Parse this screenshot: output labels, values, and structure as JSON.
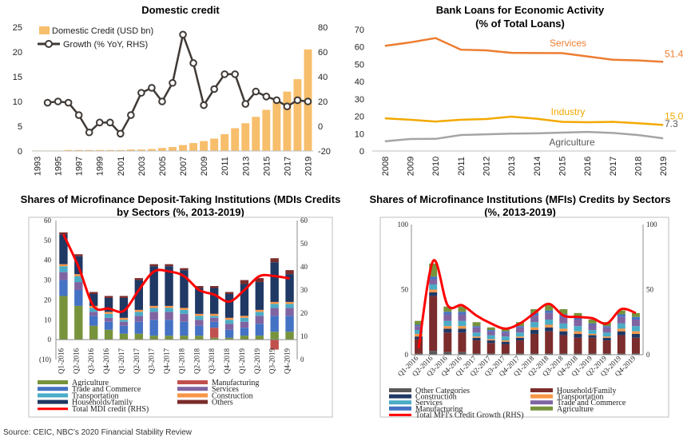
{
  "source_note": "Source: CEIC, NBC’s 2020 Financial Stability Review",
  "chart_data": [
    {
      "type": "bar",
      "title": "Domestic credit",
      "x": [
        "1993",
        "1994",
        "1995",
        "1996",
        "1997",
        "1998",
        "1999",
        "2000",
        "2001",
        "2002",
        "2003",
        "2004",
        "2005",
        "2006",
        "2007",
        "2008",
        "2009",
        "2010",
        "2011",
        "2012",
        "2013",
        "2014",
        "2015",
        "2016",
        "2017",
        "2018",
        "2019"
      ],
      "x_tick_labels": [
        "1993",
        "1995",
        "1997",
        "1999",
        "2001",
        "2003",
        "2005",
        "2007",
        "2009",
        "2011",
        "2013",
        "2015",
        "2017",
        "2019"
      ],
      "y_ticks_left": [
        "0",
        "5",
        "10",
        "15",
        "20",
        "25"
      ],
      "y_ticks_right": [
        "-20",
        "0",
        "20",
        "40",
        "60",
        "80"
      ],
      "ylim_left": [
        0,
        25
      ],
      "ylim_right": [
        -20,
        80
      ],
      "legend_position": "top-left",
      "grid": false,
      "series": [
        {
          "name": "Domestic Credit (USD bn)",
          "type": "bar",
          "axis": "left",
          "color": "#f7be6b",
          "values": [
            0.1,
            0.1,
            0.1,
            0.2,
            0.2,
            0.2,
            0.2,
            0.2,
            0.2,
            0.3,
            0.3,
            0.4,
            0.6,
            0.8,
            1.2,
            1.6,
            2.0,
            2.5,
            3.4,
            4.6,
            5.6,
            6.9,
            8.3,
            10.0,
            12.0,
            14.5,
            20.5
          ]
        },
        {
          "name": "Growth (% YoY, RHS)",
          "type": "line",
          "axis": "right",
          "color": "#403a36",
          "values": [
            null,
            19,
            20,
            19,
            9,
            -5,
            3,
            3,
            -6,
            9,
            27,
            31,
            20,
            35,
            74,
            51,
            17,
            30,
            42,
            42,
            18,
            28,
            24,
            21,
            16,
            21,
            20
          ]
        }
      ]
    },
    {
      "type": "line",
      "title": "Bank Loans for Economic Activity",
      "subtitle": "(% of Total Loans)",
      "x": [
        "2008",
        "2009",
        "2010",
        "2011",
        "2012",
        "2013",
        "2014",
        "2015",
        "2016",
        "2017",
        "2018",
        "2019"
      ],
      "y_ticks": [
        "0",
        "10",
        "20",
        "30",
        "40",
        "50",
        "60",
        "70"
      ],
      "ylim": [
        0,
        70
      ],
      "grid": false,
      "series": [
        {
          "name": "Services",
          "color": "#ed7d31",
          "end_label": "51.4",
          "values": [
            60.6,
            62.6,
            65.1,
            58.4,
            58.0,
            56.6,
            56.5,
            56.4,
            54.5,
            52.6,
            52.2,
            51.4
          ]
        },
        {
          "name": "Industry",
          "color": "#f2a900",
          "end_label": "15.0",
          "values": [
            18.8,
            18.0,
            17.0,
            18.0,
            18.4,
            19.8,
            18.6,
            16.8,
            16.6,
            16.8,
            16.0,
            15.0
          ]
        },
        {
          "name": "Agriculture",
          "color": "#a5a5a5",
          "end_label": "7.3",
          "values": [
            5.6,
            6.9,
            7.0,
            9.2,
            9.6,
            10.0,
            10.2,
            10.6,
            11.0,
            10.4,
            9.2,
            7.3
          ]
        }
      ]
    },
    {
      "type": "bar",
      "stacked": true,
      "title": "Shares of Microfinance Deposit-Taking Institutions (MDIs Credits by Sectors (%, 2013-2019)",
      "title_lines": [
        "Shares of Microfinance Deposit-Taking Institutions (MDIs Credits",
        "by Sectors (%, 2013-2019)"
      ],
      "categories": [
        "Q1-2016",
        "Q2-2016",
        "Q3-2016",
        "Q4-2016",
        "Q1-2017",
        "Q2-2017",
        "Q3-2017",
        "Q4-2017",
        "Q1-2018",
        "Q2-2018",
        "Q3-2018",
        "Q4-2018",
        "Q1-2019",
        "Q2-2019",
        "Q3-2019",
        "Q4-2019"
      ],
      "y_ticks_left": [
        "(10)",
        "0",
        "10",
        "20",
        "30",
        "40",
        "50",
        "60"
      ],
      "y_ticks_right": [
        "0",
        "10",
        "20",
        "30",
        "40",
        "50",
        "60"
      ],
      "ylim_left": [
        -10,
        60
      ],
      "ylim_right": [
        0,
        60
      ],
      "legend_position": "bottom",
      "series": [
        {
          "name": "Agriculture",
          "color": "#77933c",
          "values": [
            22,
            17,
            7,
            5,
            3,
            3,
            2,
            2,
            2,
            2,
            1,
            1,
            2,
            2,
            4,
            4
          ]
        },
        {
          "name": "Manufacturing",
          "color": "#c0504d",
          "values": [
            0,
            0,
            0,
            0,
            0,
            0,
            0,
            0,
            0,
            0,
            5,
            0,
            0,
            0,
            -5,
            0
          ]
        },
        {
          "name": "Trade and Commerce",
          "color": "#4472c4",
          "values": [
            8,
            8,
            5,
            4,
            4,
            6,
            8,
            8,
            7,
            5,
            3,
            4,
            4,
            6,
            8,
            8
          ]
        },
        {
          "name": "Services",
          "color": "#8064a2",
          "values": [
            4,
            4,
            2,
            2,
            2,
            3,
            4,
            4,
            4,
            3,
            2,
            3,
            3,
            4,
            4,
            4
          ]
        },
        {
          "name": "Transportation",
          "color": "#4bacc6",
          "values": [
            3,
            3,
            2,
            2,
            1,
            2,
            2,
            2,
            2,
            2,
            1,
            2,
            2,
            2,
            2,
            2
          ]
        },
        {
          "name": "Construction",
          "color": "#f79646",
          "values": [
            1,
            1,
            1,
            1,
            1,
            1,
            1,
            1,
            1,
            1,
            1,
            1,
            1,
            1,
            1,
            1
          ]
        },
        {
          "name": "Households/family",
          "color": "#1f3864",
          "values": [
            15,
            9,
            6,
            7,
            10,
            15,
            20,
            20,
            19,
            13,
            13,
            12,
            16,
            14,
            20,
            14
          ]
        },
        {
          "name": "Others",
          "color": "#7b2c2c",
          "values": [
            1,
            1,
            1,
            1,
            1,
            1,
            1,
            1,
            1,
            1,
            1,
            1,
            2,
            2,
            2,
            2
          ]
        }
      ],
      "line": {
        "name": "Total MDI credit (RHS)",
        "color": "#ff0000",
        "values": [
          54,
          40,
          23,
          22,
          21,
          30,
          38,
          38,
          36,
          30,
          28,
          25,
          30,
          36,
          36,
          35
        ]
      }
    },
    {
      "type": "bar",
      "stacked": true,
      "title": "Shares of Microfinance Institutions (MFIs) Credits by Sectors (%, 2013-2019)",
      "title_lines": [
        "Shares of Microfinance Institutions (MFIs) Credits by Sectors",
        "(%, 2013-2019)"
      ],
      "categories": [
        "Q1-2016",
        "Q2-2016",
        "Q3-2016",
        "Q4-2016",
        "Q1-2017",
        "Q2-2017",
        "Q3-2017",
        "Q4-2017",
        "Q1-2018",
        "Q2-2018",
        "Q3-2018",
        "Q4-2018",
        "Q1-2019",
        "Q2-2019",
        "Q3-2019",
        "Q4-2019"
      ],
      "y_ticks_left": [
        "0",
        "50",
        "100"
      ],
      "y_ticks_right": [
        "0",
        "50",
        "100"
      ],
      "ylim": [
        0,
        100
      ],
      "legend_position": "bottom",
      "series": [
        {
          "name": "Other Categories",
          "color": "#595959",
          "values": [
            1,
            3,
            2,
            2,
            1,
            1,
            1,
            1,
            1,
            1,
            1,
            1,
            1,
            1,
            1,
            1
          ]
        },
        {
          "name": "Household/Family",
          "color": "#7b2c2c",
          "values": [
            11,
            42,
            15,
            15,
            10,
            8,
            7,
            10,
            15,
            17,
            14,
            12,
            12,
            10,
            14,
            12
          ]
        },
        {
          "name": "Construction",
          "color": "#1f3864",
          "values": [
            2,
            3,
            3,
            3,
            2,
            2,
            2,
            2,
            3,
            3,
            3,
            3,
            2,
            2,
            3,
            3
          ]
        },
        {
          "name": "Transportation",
          "color": "#f79646",
          "values": [
            2,
            2,
            2,
            2,
            1,
            1,
            1,
            1,
            2,
            2,
            2,
            2,
            1,
            1,
            2,
            2
          ]
        },
        {
          "name": "Services",
          "color": "#4bacc6",
          "values": [
            3,
            4,
            4,
            4,
            3,
            3,
            3,
            3,
            4,
            4,
            4,
            4,
            3,
            3,
            4,
            4
          ]
        },
        {
          "name": "Trade and Commerce",
          "color": "#8064a2",
          "values": [
            3,
            4,
            5,
            5,
            4,
            3,
            3,
            4,
            5,
            5,
            5,
            5,
            4,
            4,
            5,
            5
          ]
        },
        {
          "name": "Manufacturing",
          "color": "#4472c4",
          "values": [
            1,
            2,
            2,
            2,
            1,
            1,
            1,
            1,
            2,
            2,
            2,
            2,
            1,
            1,
            2,
            2
          ]
        },
        {
          "name": "Agriculture",
          "color": "#77933c",
          "values": [
            3,
            10,
            4,
            4,
            3,
            2,
            2,
            3,
            3,
            4,
            4,
            3,
            3,
            3,
            3,
            3
          ]
        }
      ],
      "line": {
        "name": "Total MFI's Credit Growth (RHS)",
        "color": "#ff0000",
        "values": [
          5,
          72,
          38,
          38,
          30,
          24,
          20,
          24,
          32,
          39,
          30,
          29,
          28,
          24,
          35,
          32
        ]
      }
    }
  ]
}
